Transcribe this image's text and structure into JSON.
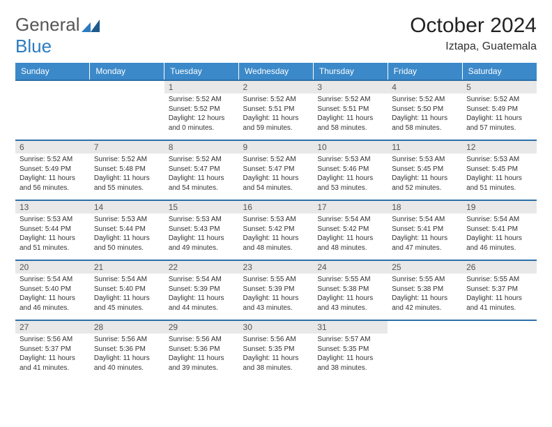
{
  "brand": {
    "text1": "General",
    "text2": "Blue"
  },
  "title": "October 2024",
  "location": "Iztapa, Guatemala",
  "daynames": [
    "Sunday",
    "Monday",
    "Tuesday",
    "Wednesday",
    "Thursday",
    "Friday",
    "Saturday"
  ],
  "colors": {
    "header_bg": "#3b89c9",
    "header_text": "#ffffff",
    "border": "#2d6ea8",
    "daynum_bg": "#e8e8e8",
    "text": "#333333",
    "logo_blue": "#2d7bbf"
  },
  "fonts": {
    "title_size": 30,
    "location_size": 16,
    "dayname_size": 12,
    "body_size": 10
  },
  "grid": {
    "cols": 7,
    "rows": 5,
    "first_day_col": 2,
    "days_in_month": 31
  },
  "days": [
    {
      "n": 1,
      "sunrise": "5:52 AM",
      "sunset": "5:52 PM",
      "dh": 12,
      "dm": 0
    },
    {
      "n": 2,
      "sunrise": "5:52 AM",
      "sunset": "5:51 PM",
      "dh": 11,
      "dm": 59
    },
    {
      "n": 3,
      "sunrise": "5:52 AM",
      "sunset": "5:51 PM",
      "dh": 11,
      "dm": 58
    },
    {
      "n": 4,
      "sunrise": "5:52 AM",
      "sunset": "5:50 PM",
      "dh": 11,
      "dm": 58
    },
    {
      "n": 5,
      "sunrise": "5:52 AM",
      "sunset": "5:49 PM",
      "dh": 11,
      "dm": 57
    },
    {
      "n": 6,
      "sunrise": "5:52 AM",
      "sunset": "5:49 PM",
      "dh": 11,
      "dm": 56
    },
    {
      "n": 7,
      "sunrise": "5:52 AM",
      "sunset": "5:48 PM",
      "dh": 11,
      "dm": 55
    },
    {
      "n": 8,
      "sunrise": "5:52 AM",
      "sunset": "5:47 PM",
      "dh": 11,
      "dm": 54
    },
    {
      "n": 9,
      "sunrise": "5:52 AM",
      "sunset": "5:47 PM",
      "dh": 11,
      "dm": 54
    },
    {
      "n": 10,
      "sunrise": "5:53 AM",
      "sunset": "5:46 PM",
      "dh": 11,
      "dm": 53
    },
    {
      "n": 11,
      "sunrise": "5:53 AM",
      "sunset": "5:45 PM",
      "dh": 11,
      "dm": 52
    },
    {
      "n": 12,
      "sunrise": "5:53 AM",
      "sunset": "5:45 PM",
      "dh": 11,
      "dm": 51
    },
    {
      "n": 13,
      "sunrise": "5:53 AM",
      "sunset": "5:44 PM",
      "dh": 11,
      "dm": 51
    },
    {
      "n": 14,
      "sunrise": "5:53 AM",
      "sunset": "5:44 PM",
      "dh": 11,
      "dm": 50
    },
    {
      "n": 15,
      "sunrise": "5:53 AM",
      "sunset": "5:43 PM",
      "dh": 11,
      "dm": 49
    },
    {
      "n": 16,
      "sunrise": "5:53 AM",
      "sunset": "5:42 PM",
      "dh": 11,
      "dm": 48
    },
    {
      "n": 17,
      "sunrise": "5:54 AM",
      "sunset": "5:42 PM",
      "dh": 11,
      "dm": 48
    },
    {
      "n": 18,
      "sunrise": "5:54 AM",
      "sunset": "5:41 PM",
      "dh": 11,
      "dm": 47
    },
    {
      "n": 19,
      "sunrise": "5:54 AM",
      "sunset": "5:41 PM",
      "dh": 11,
      "dm": 46
    },
    {
      "n": 20,
      "sunrise": "5:54 AM",
      "sunset": "5:40 PM",
      "dh": 11,
      "dm": 46
    },
    {
      "n": 21,
      "sunrise": "5:54 AM",
      "sunset": "5:40 PM",
      "dh": 11,
      "dm": 45
    },
    {
      "n": 22,
      "sunrise": "5:54 AM",
      "sunset": "5:39 PM",
      "dh": 11,
      "dm": 44
    },
    {
      "n": 23,
      "sunrise": "5:55 AM",
      "sunset": "5:39 PM",
      "dh": 11,
      "dm": 43
    },
    {
      "n": 24,
      "sunrise": "5:55 AM",
      "sunset": "5:38 PM",
      "dh": 11,
      "dm": 43
    },
    {
      "n": 25,
      "sunrise": "5:55 AM",
      "sunset": "5:38 PM",
      "dh": 11,
      "dm": 42
    },
    {
      "n": 26,
      "sunrise": "5:55 AM",
      "sunset": "5:37 PM",
      "dh": 11,
      "dm": 41
    },
    {
      "n": 27,
      "sunrise": "5:56 AM",
      "sunset": "5:37 PM",
      "dh": 11,
      "dm": 41
    },
    {
      "n": 28,
      "sunrise": "5:56 AM",
      "sunset": "5:36 PM",
      "dh": 11,
      "dm": 40
    },
    {
      "n": 29,
      "sunrise": "5:56 AM",
      "sunset": "5:36 PM",
      "dh": 11,
      "dm": 39
    },
    {
      "n": 30,
      "sunrise": "5:56 AM",
      "sunset": "5:35 PM",
      "dh": 11,
      "dm": 38
    },
    {
      "n": 31,
      "sunrise": "5:57 AM",
      "sunset": "5:35 PM",
      "dh": 11,
      "dm": 38
    }
  ],
  "labels": {
    "sunrise": "Sunrise:",
    "sunset": "Sunset:",
    "daylight": "Daylight:",
    "hours": "hours",
    "and": "and",
    "minutes": "minutes."
  }
}
